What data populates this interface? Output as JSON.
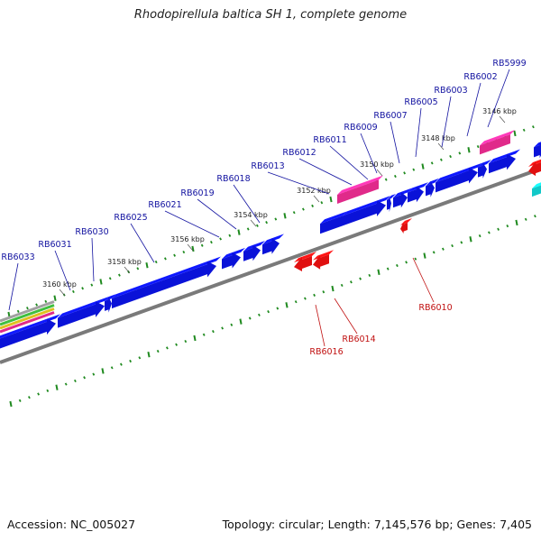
{
  "title": "Rhodopirellula baltica SH 1, complete genome",
  "footer": {
    "accession": "Accession: NC_005027",
    "summary": "Topology: circular; Length: 7,145,576 bp; Genes: 7,405"
  },
  "colors": {
    "forward_gene": "#0a12d8",
    "reverse_gene": "#e01010",
    "rna_gene": "#e02a8a",
    "cyan_feature": "#12c8c8",
    "backbone": "#7a7a7a",
    "tick": "#1f8a1f",
    "forward_label": "#1212a0",
    "reverse_label": "#c01010"
  },
  "ticks": [
    {
      "id": "t3146",
      "label": "3146 kbp"
    },
    {
      "id": "t3148",
      "label": "3148 kbp"
    },
    {
      "id": "t3150",
      "label": "3150 kbp"
    },
    {
      "id": "t3152",
      "label": "3152 kbp"
    },
    {
      "id": "t3154",
      "label": "3154 kbp"
    },
    {
      "id": "t3156",
      "label": "3156 kbp"
    },
    {
      "id": "t3158",
      "label": "3158 kbp"
    },
    {
      "id": "t3160",
      "label": "3160 kbp"
    }
  ],
  "forward_gene_labels": [
    "RB5999",
    "RB6002",
    "RB6003",
    "RB6005",
    "RB6007",
    "RB6009",
    "RB6011",
    "RB6012",
    "RB6013",
    "RB6018",
    "RB6019",
    "RB6021",
    "RB6025",
    "RB6030",
    "RB6031",
    "RB6033"
  ],
  "reverse_gene_labels": [
    "RB6010",
    "RB6014",
    "RB6016"
  ]
}
